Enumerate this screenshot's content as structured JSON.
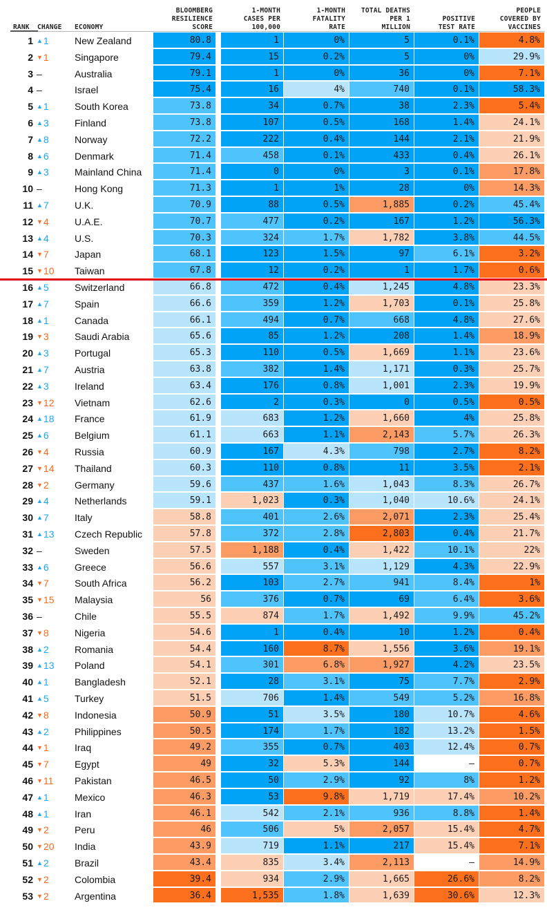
{
  "headers": {
    "rank": "RANK",
    "change": "CHANGE",
    "economy": "ECONOMY",
    "score": "BLOOMBERG\nRESILIENCE\nSCORE",
    "cases": "1-MONTH\nCASES PER\n100,000",
    "fatality": "1-MONTH\nFATALITY\nRATE",
    "deaths": "TOTAL DEATHS\nPER 1\nMILLION",
    "positive": "POSITIVE\nTEST RATE",
    "vaccines": "PEOPLE\nCOVERED BY\nVACCINES"
  },
  "icons": {
    "up": "triangle-up-icon",
    "down": "triangle-down-icon",
    "same": "dash"
  },
  "colors": {
    "scale": [
      "#00a3f5",
      "#4fc3fc",
      "#b9e5fc",
      "#fdd0b5",
      "#fc9c64",
      "#fc6f1c"
    ],
    "up": "#1ea6ea",
    "down": "#f26b1d",
    "cutoff_line": "#e3000f"
  },
  "cutoff_after_rank": 15,
  "rows": [
    {
      "rank": "1",
      "dir": "up",
      "chg": "1",
      "econ": "New Zealand",
      "score": "80.8",
      "cases": "1",
      "fat": "0%",
      "deaths": "5",
      "pos": "0.1%",
      "vac": "4.8%",
      "c": [
        0,
        0,
        0,
        0,
        0,
        5
      ]
    },
    {
      "rank": "2",
      "dir": "down",
      "chg": "1",
      "econ": "Singapore",
      "score": "79.4",
      "cases": "15",
      "fat": "0.2%",
      "deaths": "5",
      "pos": "0%",
      "vac": "29.9%",
      "c": [
        0,
        0,
        0,
        0,
        0,
        2
      ]
    },
    {
      "rank": "3",
      "dir": "same",
      "chg": "–",
      "econ": "Australia",
      "score": "79.1",
      "cases": "1",
      "fat": "0%",
      "deaths": "36",
      "pos": "0%",
      "vac": "7.1%",
      "c": [
        0,
        0,
        0,
        0,
        0,
        5
      ]
    },
    {
      "rank": "4",
      "dir": "same",
      "chg": "–",
      "econ": "Israel",
      "score": "75.4",
      "cases": "16",
      "fat": "4%",
      "deaths": "740",
      "pos": "0.1%",
      "vac": "58.3%",
      "c": [
        0,
        0,
        2,
        1,
        0,
        0
      ]
    },
    {
      "rank": "5",
      "dir": "up",
      "chg": "1",
      "econ": "South Korea",
      "score": "73.8",
      "cases": "34",
      "fat": "0.7%",
      "deaths": "38",
      "pos": "2.3%",
      "vac": "5.4%",
      "c": [
        1,
        0,
        0,
        0,
        0,
        5
      ]
    },
    {
      "rank": "6",
      "dir": "up",
      "chg": "3",
      "econ": "Finland",
      "score": "73.8",
      "cases": "107",
      "fat": "0.5%",
      "deaths": "168",
      "pos": "1.4%",
      "vac": "24.1%",
      "c": [
        1,
        0,
        0,
        0,
        0,
        3
      ]
    },
    {
      "rank": "7",
      "dir": "up",
      "chg": "8",
      "econ": "Norway",
      "score": "72.2",
      "cases": "222",
      "fat": "0.4%",
      "deaths": "144",
      "pos": "2.1%",
      "vac": "21.9%",
      "c": [
        1,
        0,
        0,
        0,
        0,
        3
      ]
    },
    {
      "rank": "8",
      "dir": "up",
      "chg": "6",
      "econ": "Denmark",
      "score": "71.4",
      "cases": "458",
      "fat": "0.1%",
      "deaths": "433",
      "pos": "0.4%",
      "vac": "26.1%",
      "c": [
        1,
        1,
        0,
        0,
        0,
        3
      ]
    },
    {
      "rank": "9",
      "dir": "up",
      "chg": "3",
      "econ": "Mainland China",
      "score": "71.4",
      "cases": "0",
      "fat": "0%",
      "deaths": "3",
      "pos": "0.1%",
      "vac": "17.8%",
      "c": [
        1,
        0,
        0,
        0,
        0,
        4
      ]
    },
    {
      "rank": "10",
      "dir": "same",
      "chg": "–",
      "econ": "Hong Kong",
      "score": "71.3",
      "cases": "1",
      "fat": "1%",
      "deaths": "28",
      "pos": "0%",
      "vac": "14.3%",
      "c": [
        1,
        0,
        0,
        0,
        0,
        4
      ]
    },
    {
      "rank": "11",
      "dir": "up",
      "chg": "7",
      "econ": "U.K.",
      "score": "70.9",
      "cases": "88",
      "fat": "0.5%",
      "deaths": "1,885",
      "pos": "0.2%",
      "vac": "45.4%",
      "c": [
        1,
        0,
        0,
        4,
        0,
        1
      ]
    },
    {
      "rank": "12",
      "dir": "down",
      "chg": "4",
      "econ": "U.A.E.",
      "score": "70.7",
      "cases": "477",
      "fat": "0.2%",
      "deaths": "167",
      "pos": "1.2%",
      "vac": "56.3%",
      "c": [
        1,
        1,
        0,
        0,
        0,
        0
      ]
    },
    {
      "rank": "13",
      "dir": "up",
      "chg": "4",
      "econ": "U.S.",
      "score": "70.3",
      "cases": "324",
      "fat": "1.7%",
      "deaths": "1,782",
      "pos": "3.8%",
      "vac": "44.5%",
      "c": [
        1,
        1,
        1,
        3,
        0,
        1
      ]
    },
    {
      "rank": "14",
      "dir": "down",
      "chg": "7",
      "econ": "Japan",
      "score": "68.1",
      "cases": "123",
      "fat": "1.5%",
      "deaths": "97",
      "pos": "6.1%",
      "vac": "3.2%",
      "c": [
        1,
        0,
        0,
        0,
        1,
        5
      ]
    },
    {
      "rank": "15",
      "dir": "down",
      "chg": "10",
      "econ": "Taiwan",
      "score": "67.8",
      "cases": "12",
      "fat": "0.2%",
      "deaths": "1",
      "pos": "1.7%",
      "vac": "0.6%",
      "c": [
        1,
        0,
        0,
        0,
        0,
        5
      ]
    },
    {
      "rank": "16",
      "dir": "up",
      "chg": "5",
      "econ": "Switzerland",
      "score": "66.8",
      "cases": "472",
      "fat": "0.4%",
      "deaths": "1,245",
      "pos": "4.8%",
      "vac": "23.3%",
      "c": [
        2,
        1,
        0,
        2,
        0,
        3
      ]
    },
    {
      "rank": "17",
      "dir": "up",
      "chg": "7",
      "econ": "Spain",
      "score": "66.6",
      "cases": "359",
      "fat": "1.2%",
      "deaths": "1,703",
      "pos": "0.1%",
      "vac": "25.8%",
      "c": [
        2,
        1,
        0,
        3,
        0,
        3
      ]
    },
    {
      "rank": "18",
      "dir": "up",
      "chg": "1",
      "econ": "Canada",
      "score": "66.1",
      "cases": "494",
      "fat": "0.7%",
      "deaths": "668",
      "pos": "4.8%",
      "vac": "27.6%",
      "c": [
        2,
        1,
        0,
        1,
        0,
        3
      ]
    },
    {
      "rank": "19",
      "dir": "down",
      "chg": "3",
      "econ": "Saudi Arabia",
      "score": "65.6",
      "cases": "85",
      "fat": "1.2%",
      "deaths": "208",
      "pos": "1.4%",
      "vac": "18.9%",
      "c": [
        2,
        0,
        0,
        0,
        0,
        4
      ]
    },
    {
      "rank": "20",
      "dir": "up",
      "chg": "3",
      "econ": "Portugal",
      "score": "65.3",
      "cases": "110",
      "fat": "0.5%",
      "deaths": "1,669",
      "pos": "1.1%",
      "vac": "23.6%",
      "c": [
        2,
        0,
        0,
        3,
        0,
        3
      ]
    },
    {
      "rank": "21",
      "dir": "up",
      "chg": "7",
      "econ": "Austria",
      "score": "63.8",
      "cases": "382",
      "fat": "1.4%",
      "deaths": "1,171",
      "pos": "0.3%",
      "vac": "25.7%",
      "c": [
        2,
        1,
        0,
        2,
        0,
        3
      ]
    },
    {
      "rank": "22",
      "dir": "up",
      "chg": "3",
      "econ": "Ireland",
      "score": "63.4",
      "cases": "176",
      "fat": "0.8%",
      "deaths": "1,001",
      "pos": "2.3%",
      "vac": "19.9%",
      "c": [
        2,
        0,
        0,
        2,
        0,
        3
      ]
    },
    {
      "rank": "23",
      "dir": "down",
      "chg": "12",
      "econ": "Vietnam",
      "score": "62.6",
      "cases": "2",
      "fat": "0.3%",
      "deaths": "0",
      "pos": "0.5%",
      "vac": "0.5%",
      "c": [
        2,
        0,
        0,
        0,
        0,
        5
      ]
    },
    {
      "rank": "24",
      "dir": "up",
      "chg": "18",
      "econ": "France",
      "score": "61.9",
      "cases": "683",
      "fat": "1.2%",
      "deaths": "1,660",
      "pos": "4%",
      "vac": "25.8%",
      "c": [
        2,
        2,
        0,
        3,
        0,
        3
      ]
    },
    {
      "rank": "25",
      "dir": "up",
      "chg": "6",
      "econ": "Belgium",
      "score": "61.1",
      "cases": "663",
      "fat": "1.1%",
      "deaths": "2,143",
      "pos": "5.7%",
      "vac": "26.3%",
      "c": [
        2,
        2,
        0,
        4,
        1,
        3
      ]
    },
    {
      "rank": "26",
      "dir": "down",
      "chg": "4",
      "econ": "Russia",
      "score": "60.9",
      "cases": "167",
      "fat": "4.3%",
      "deaths": "798",
      "pos": "2.7%",
      "vac": "8.2%",
      "c": [
        2,
        0,
        2,
        1,
        0,
        5
      ]
    },
    {
      "rank": "27",
      "dir": "down",
      "chg": "14",
      "econ": "Thailand",
      "score": "60.3",
      "cases": "110",
      "fat": "0.8%",
      "deaths": "11",
      "pos": "3.5%",
      "vac": "2.1%",
      "c": [
        2,
        0,
        0,
        0,
        0,
        5
      ]
    },
    {
      "rank": "28",
      "dir": "down",
      "chg": "2",
      "econ": "Germany",
      "score": "59.6",
      "cases": "437",
      "fat": "1.6%",
      "deaths": "1,043",
      "pos": "8.3%",
      "vac": "26.7%",
      "c": [
        2,
        1,
        1,
        2,
        1,
        3
      ]
    },
    {
      "rank": "29",
      "dir": "up",
      "chg": "4",
      "econ": "Netherlands",
      "score": "59.1",
      "cases": "1,023",
      "fat": "0.3%",
      "deaths": "1,040",
      "pos": "10.6%",
      "vac": "24.1%",
      "c": [
        2,
        3,
        0,
        2,
        2,
        3
      ]
    },
    {
      "rank": "30",
      "dir": "up",
      "chg": "7",
      "econ": "Italy",
      "score": "58.8",
      "cases": "401",
      "fat": "2.6%",
      "deaths": "2,071",
      "pos": "2.3%",
      "vac": "25.4%",
      "c": [
        3,
        1,
        1,
        4,
        0,
        3
      ]
    },
    {
      "rank": "31",
      "dir": "up",
      "chg": "13",
      "econ": "Czech Republic",
      "score": "57.8",
      "cases": "372",
      "fat": "2.8%",
      "deaths": "2,803",
      "pos": "0.4%",
      "vac": "21.7%",
      "c": [
        3,
        1,
        1,
        5,
        0,
        3
      ]
    },
    {
      "rank": "32",
      "dir": "same",
      "chg": "–",
      "econ": "Sweden",
      "score": "57.5",
      "cases": "1,188",
      "fat": "0.4%",
      "deaths": "1,422",
      "pos": "10.1%",
      "vac": "22%",
      "c": [
        3,
        4,
        0,
        3,
        1,
        3
      ]
    },
    {
      "rank": "33",
      "dir": "up",
      "chg": "6",
      "econ": "Greece",
      "score": "56.6",
      "cases": "557",
      "fat": "3.1%",
      "deaths": "1,129",
      "pos": "4.3%",
      "vac": "22.9%",
      "c": [
        3,
        2,
        1,
        2,
        0,
        3
      ]
    },
    {
      "rank": "34",
      "dir": "down",
      "chg": "7",
      "econ": "South Africa",
      "score": "56.2",
      "cases": "103",
      "fat": "2.7%",
      "deaths": "941",
      "pos": "8.4%",
      "vac": "1%",
      "c": [
        3,
        0,
        1,
        1,
        1,
        5
      ]
    },
    {
      "rank": "35",
      "dir": "down",
      "chg": "15",
      "econ": "Malaysia",
      "score": "56",
      "cases": "376",
      "fat": "0.7%",
      "deaths": "69",
      "pos": "6.4%",
      "vac": "3.6%",
      "c": [
        3,
        1,
        0,
        0,
        1,
        5
      ]
    },
    {
      "rank": "36",
      "dir": "same",
      "chg": "–",
      "econ": "Chile",
      "score": "55.5",
      "cases": "874",
      "fat": "1.7%",
      "deaths": "1,492",
      "pos": "9.9%",
      "vac": "45.2%",
      "c": [
        3,
        3,
        1,
        3,
        1,
        1
      ]
    },
    {
      "rank": "37",
      "dir": "down",
      "chg": "8",
      "econ": "Nigeria",
      "score": "54.6",
      "cases": "1",
      "fat": "0.4%",
      "deaths": "10",
      "pos": "1.2%",
      "vac": "0.4%",
      "c": [
        3,
        0,
        0,
        0,
        0,
        5
      ]
    },
    {
      "rank": "38",
      "dir": "up",
      "chg": "2",
      "econ": "Romania",
      "score": "54.4",
      "cases": "160",
      "fat": "8.7%",
      "deaths": "1,556",
      "pos": "3.6%",
      "vac": "19.1%",
      "c": [
        3,
        0,
        5,
        3,
        0,
        4
      ]
    },
    {
      "rank": "39",
      "dir": "up",
      "chg": "13",
      "econ": "Poland",
      "score": "54.1",
      "cases": "301",
      "fat": "6.8%",
      "deaths": "1,927",
      "pos": "4.2%",
      "vac": "23.5%",
      "c": [
        3,
        1,
        4,
        4,
        0,
        3
      ]
    },
    {
      "rank": "40",
      "dir": "up",
      "chg": "1",
      "econ": "Bangladesh",
      "score": "52.1",
      "cases": "28",
      "fat": "3.1%",
      "deaths": "75",
      "pos": "7.7%",
      "vac": "2.9%",
      "c": [
        3,
        0,
        1,
        0,
        1,
        5
      ]
    },
    {
      "rank": "41",
      "dir": "up",
      "chg": "5",
      "econ": "Turkey",
      "score": "51.5",
      "cases": "706",
      "fat": "1.4%",
      "deaths": "549",
      "pos": "5.2%",
      "vac": "16.8%",
      "c": [
        3,
        2,
        0,
        1,
        1,
        4
      ]
    },
    {
      "rank": "42",
      "dir": "down",
      "chg": "8",
      "econ": "Indonesia",
      "score": "50.9",
      "cases": "51",
      "fat": "3.5%",
      "deaths": "180",
      "pos": "10.7%",
      "vac": "4.6%",
      "c": [
        4,
        0,
        2,
        0,
        2,
        5
      ]
    },
    {
      "rank": "43",
      "dir": "up",
      "chg": "2",
      "econ": "Philippines",
      "score": "50.5",
      "cases": "174",
      "fat": "1.7%",
      "deaths": "182",
      "pos": "13.2%",
      "vac": "1.5%",
      "c": [
        4,
        0,
        1,
        0,
        2,
        5
      ]
    },
    {
      "rank": "44",
      "dir": "down",
      "chg": "1",
      "econ": "Iraq",
      "score": "49.2",
      "cases": "355",
      "fat": "0.7%",
      "deaths": "403",
      "pos": "12.4%",
      "vac": "0.7%",
      "c": [
        4,
        1,
        0,
        0,
        2,
        5
      ]
    },
    {
      "rank": "45",
      "dir": "down",
      "chg": "7",
      "econ": "Egypt",
      "score": "49",
      "cases": "32",
      "fat": "5.3%",
      "deaths": "144",
      "pos": "–",
      "vac": "0.7%",
      "c": [
        4,
        0,
        3,
        0,
        "w",
        5
      ]
    },
    {
      "rank": "46",
      "dir": "down",
      "chg": "11",
      "econ": "Pakistan",
      "score": "46.5",
      "cases": "50",
      "fat": "2.9%",
      "deaths": "92",
      "pos": "8%",
      "vac": "1.2%",
      "c": [
        4,
        0,
        1,
        0,
        1,
        5
      ]
    },
    {
      "rank": "47",
      "dir": "up",
      "chg": "1",
      "econ": "Mexico",
      "score": "46.3",
      "cases": "53",
      "fat": "9.8%",
      "deaths": "1,719",
      "pos": "17.4%",
      "vac": "10.2%",
      "c": [
        4,
        0,
        5,
        3,
        3,
        4
      ]
    },
    {
      "rank": "48",
      "dir": "up",
      "chg": "1",
      "econ": "Iran",
      "score": "46.1",
      "cases": "542",
      "fat": "2.1%",
      "deaths": "936",
      "pos": "8.8%",
      "vac": "1.4%",
      "c": [
        4,
        2,
        1,
        1,
        1,
        5
      ]
    },
    {
      "rank": "49",
      "dir": "down",
      "chg": "2",
      "econ": "Peru",
      "score": "46",
      "cases": "506",
      "fat": "5%",
      "deaths": "2,057",
      "pos": "15.4%",
      "vac": "4.7%",
      "c": [
        4,
        1,
        3,
        4,
        3,
        5
      ]
    },
    {
      "rank": "50",
      "dir": "down",
      "chg": "20",
      "econ": "India",
      "score": "43.9",
      "cases": "719",
      "fat": "1.1%",
      "deaths": "217",
      "pos": "15.4%",
      "vac": "7.1%",
      "c": [
        4,
        2,
        0,
        0,
        3,
        5
      ]
    },
    {
      "rank": "51",
      "dir": "up",
      "chg": "2",
      "econ": "Brazil",
      "score": "43.4",
      "cases": "835",
      "fat": "3.4%",
      "deaths": "2,113",
      "pos": "–",
      "vac": "14.9%",
      "c": [
        4,
        3,
        2,
        4,
        "w",
        4
      ]
    },
    {
      "rank": "52",
      "dir": "down",
      "chg": "2",
      "econ": "Colombia",
      "score": "39.4",
      "cases": "934",
      "fat": "2.9%",
      "deaths": "1,665",
      "pos": "26.6%",
      "vac": "8.2%",
      "c": [
        5,
        3,
        1,
        3,
        5,
        4
      ]
    },
    {
      "rank": "53",
      "dir": "down",
      "chg": "2",
      "econ": "Argentina",
      "score": "36.4",
      "cases": "1,535",
      "fat": "1.8%",
      "deaths": "1,639",
      "pos": "30.6%",
      "vac": "12.3%",
      "c": [
        5,
        5,
        1,
        3,
        5,
        3
      ]
    }
  ]
}
